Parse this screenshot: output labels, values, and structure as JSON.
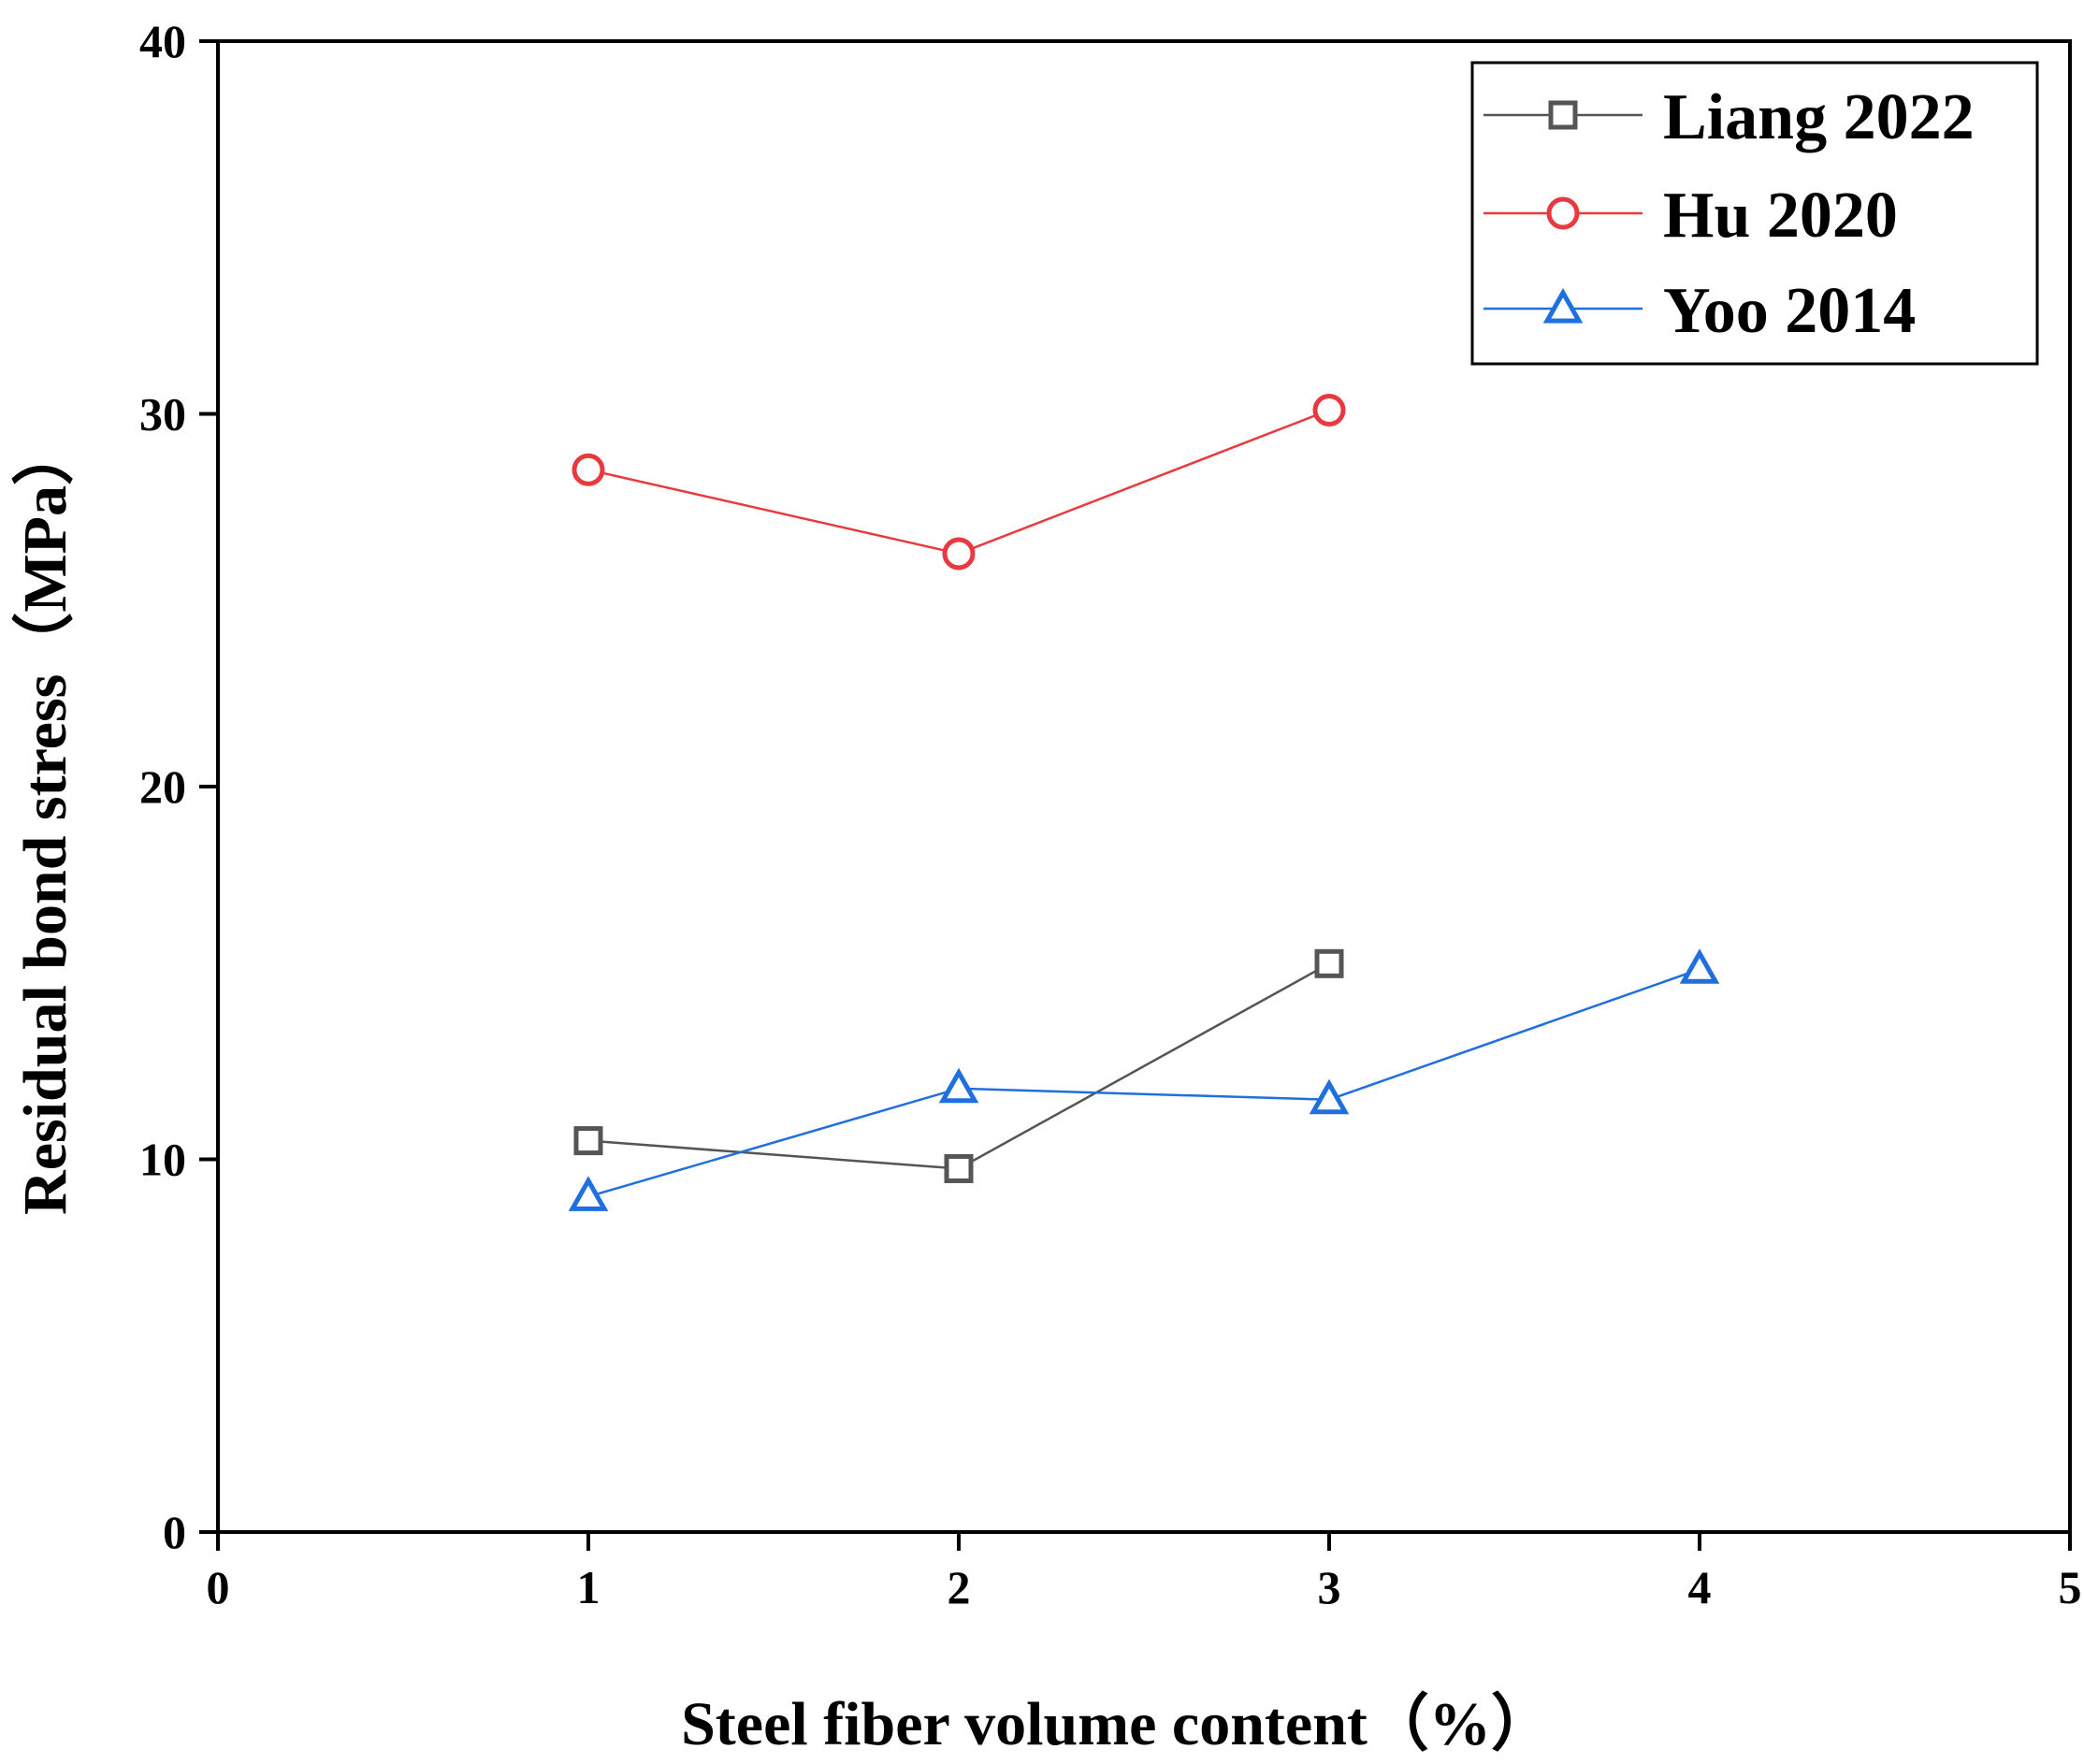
{
  "chart_data": {
    "type": "line",
    "title": "",
    "xlabel": "Steel fiber volume content（%）",
    "ylabel": "Residual bond stress（MPa）",
    "xlim": [
      0,
      5
    ],
    "ylim": [
      0,
      40
    ],
    "xticks": [
      "0",
      "1",
      "2",
      "3",
      "4",
      "5"
    ],
    "yticks": [
      "0",
      "10",
      "20",
      "30",
      "40"
    ],
    "grid": false,
    "legend_position": "top-right",
    "series": [
      {
        "name": "Liang 2022",
        "color": "#555555",
        "marker": "square",
        "x": [
          1,
          2,
          3
        ],
        "values": [
          10.5,
          9.75,
          15.25
        ]
      },
      {
        "name": "Hu 2020",
        "color": "#e8393f",
        "marker": "circle",
        "x": [
          1,
          2,
          3
        ],
        "values": [
          28.5,
          26.25,
          30.1
        ]
      },
      {
        "name": "Yoo 2014",
        "color": "#1f6fde",
        "marker": "triangle",
        "x": [
          1,
          2,
          3,
          4
        ],
        "values": [
          9.0,
          11.9,
          11.6,
          15.1
        ]
      }
    ]
  }
}
